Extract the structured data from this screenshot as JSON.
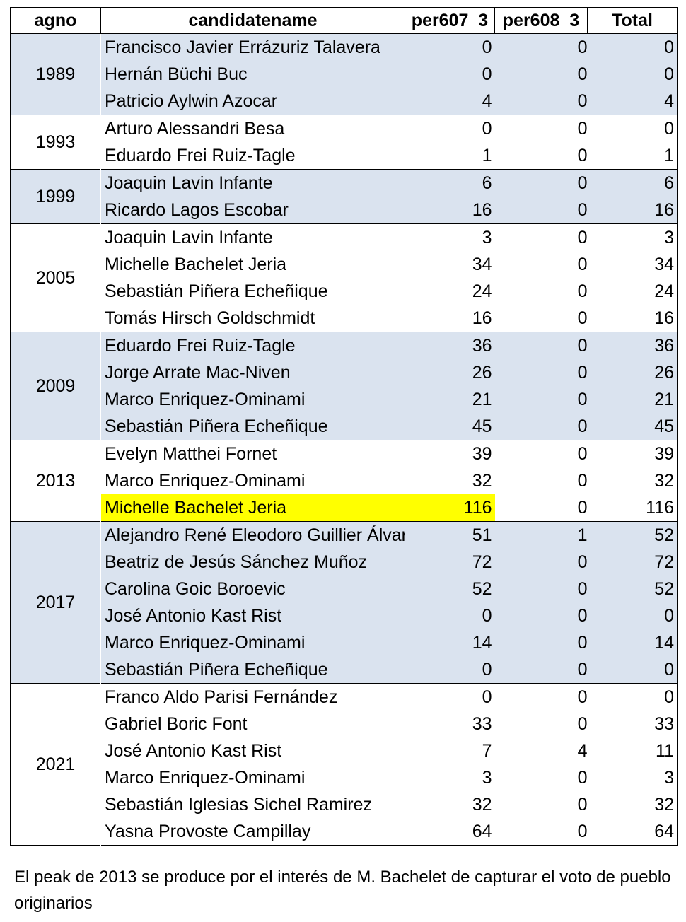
{
  "table": {
    "headers": {
      "agno": "agno",
      "candidatename": "candidatename",
      "per607": "per607_3",
      "per608": "per608_3",
      "total": "Total"
    },
    "groups": [
      {
        "year": "1989",
        "shaded": true,
        "rows": [
          {
            "name": "Francisco Javier Errázuriz Talavera",
            "per607": "0",
            "per608": "0",
            "total": "0"
          },
          {
            "name": "Hernán Büchi Buc",
            "per607": "0",
            "per608": "0",
            "total": "0"
          },
          {
            "name": "Patricio Aylwin Azocar",
            "per607": "4",
            "per608": "0",
            "total": "4"
          }
        ]
      },
      {
        "year": "1993",
        "shaded": false,
        "rows": [
          {
            "name": "Arturo Alessandri Besa",
            "per607": "0",
            "per608": "0",
            "total": "0"
          },
          {
            "name": "Eduardo Frei Ruiz-Tagle",
            "per607": "1",
            "per608": "0",
            "total": "1"
          }
        ]
      },
      {
        "year": "1999",
        "shaded": true,
        "rows": [
          {
            "name": "Joaquin Lavin Infante",
            "per607": "6",
            "per608": "0",
            "total": "6"
          },
          {
            "name": "Ricardo Lagos Escobar",
            "per607": "16",
            "per608": "0",
            "total": "16"
          }
        ]
      },
      {
        "year": "2005",
        "shaded": false,
        "rows": [
          {
            "name": "Joaquin Lavin Infante",
            "per607": "3",
            "per608": "0",
            "total": "3"
          },
          {
            "name": "Michelle Bachelet Jeria",
            "per607": "34",
            "per608": "0",
            "total": "34"
          },
          {
            "name": "Sebastián Piñera Echeñique",
            "per607": "24",
            "per608": "0",
            "total": "24"
          },
          {
            "name": "Tomás Hirsch Goldschmidt",
            "per607": "16",
            "per608": "0",
            "total": "16"
          }
        ]
      },
      {
        "year": "2009",
        "shaded": true,
        "rows": [
          {
            "name": "Eduardo Frei Ruiz-Tagle",
            "per607": "36",
            "per608": "0",
            "total": "36"
          },
          {
            "name": "Jorge Arrate Mac-Niven",
            "per607": "26",
            "per608": "0",
            "total": "26"
          },
          {
            "name": "Marco Enriquez-Ominami",
            "per607": "21",
            "per608": "0",
            "total": "21"
          },
          {
            "name": "Sebastián Piñera Echeñique",
            "per607": "45",
            "per608": "0",
            "total": "45"
          }
        ]
      },
      {
        "year": "2013",
        "shaded": false,
        "rows": [
          {
            "name": "Evelyn Matthei Fornet",
            "per607": "39",
            "per608": "0",
            "total": "39"
          },
          {
            "name": "Marco Enriquez-Ominami",
            "per607": "32",
            "per608": "0",
            "total": "32"
          },
          {
            "name": "Michelle Bachelet Jeria",
            "per607": "116",
            "per608": "0",
            "total": "116",
            "highlight": true
          }
        ]
      },
      {
        "year": "2017",
        "shaded": true,
        "rows": [
          {
            "name": "Alejandro René Eleodoro Guillier Álvar",
            "per607": "51",
            "per608": "1",
            "total": "52"
          },
          {
            "name": "Beatriz de Jesús Sánchez Muñoz",
            "per607": "72",
            "per608": "0",
            "total": "72"
          },
          {
            "name": "Carolina Goic Boroevic",
            "per607": "52",
            "per608": "0",
            "total": "52"
          },
          {
            "name": "José Antonio Kast Rist",
            "per607": "0",
            "per608": "0",
            "total": "0"
          },
          {
            "name": "Marco Enriquez-Ominami",
            "per607": "14",
            "per608": "0",
            "total": "14"
          },
          {
            "name": "Sebastián Piñera Echeñique",
            "per607": "0",
            "per608": "0",
            "total": "0"
          }
        ]
      },
      {
        "year": "2021",
        "shaded": false,
        "rows": [
          {
            "name": "Franco Aldo Parisi Fernández",
            "per607": "0",
            "per608": "0",
            "total": "0"
          },
          {
            "name": "Gabriel Boric Font",
            "per607": "33",
            "per608": "0",
            "total": "33"
          },
          {
            "name": "José Antonio Kast Rist",
            "per607": "7",
            "per608": "4",
            "total": "11"
          },
          {
            "name": "Marco Enriquez-Ominami",
            "per607": "3",
            "per608": "0",
            "total": "3"
          },
          {
            "name": "Sebastián Iglesias Sichel Ramirez",
            "per607": "32",
            "per608": "0",
            "total": "32"
          },
          {
            "name": "Yasna Provoste Campillay",
            "per607": "64",
            "per608": "0",
            "total": "64"
          }
        ]
      }
    ]
  },
  "colors": {
    "shaded_band": "#dae3ef",
    "highlight": "#ffff00"
  },
  "note": "El peak de 2013 se produce por el interés de M. Bachelet de capturar el voto de pueblo originarios"
}
